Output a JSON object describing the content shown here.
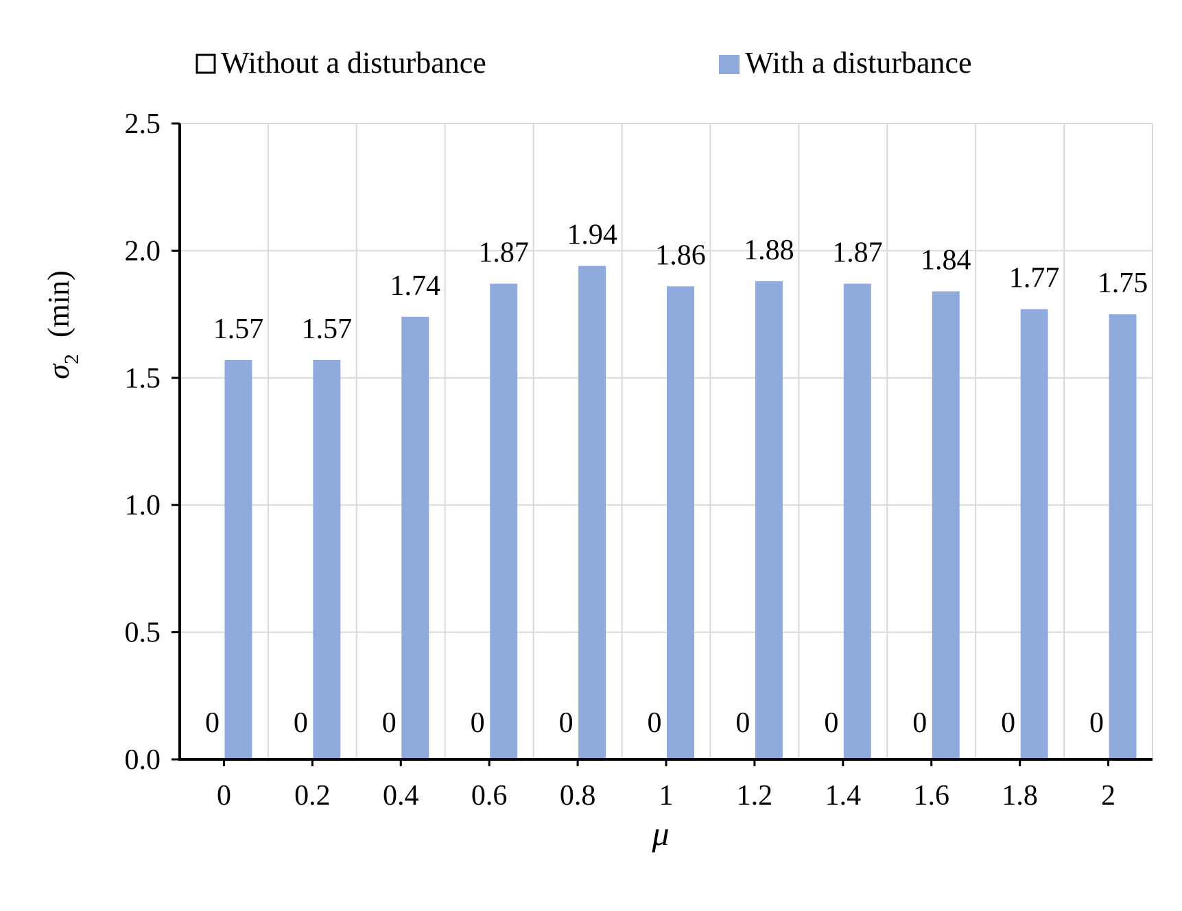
{
  "chart_data": {
    "type": "bar",
    "categories": [
      "0",
      "0.2",
      "0.4",
      "0.6",
      "0.8",
      "1",
      "1.2",
      "1.4",
      "1.6",
      "1.8",
      "2"
    ],
    "series": [
      {
        "name": "Without a disturbance",
        "values": [
          0,
          0,
          0,
          0,
          0,
          0,
          0,
          0,
          0,
          0,
          0
        ],
        "data_labels": [
          "0",
          "0",
          "0",
          "0",
          "0",
          "0",
          "0",
          "0",
          "0",
          "0",
          "0"
        ],
        "color": "#ffffff",
        "stroke": "#000000"
      },
      {
        "name": "With a disturbance",
        "values": [
          1.57,
          1.57,
          1.74,
          1.87,
          1.94,
          1.86,
          1.88,
          1.87,
          1.84,
          1.77,
          1.75
        ],
        "data_labels": [
          "1.57",
          "1.57",
          "1.74",
          "1.87",
          "1.94",
          "1.86",
          "1.88",
          "1.87",
          "1.84",
          "1.77",
          "1.75"
        ],
        "color": "#8faadc"
      }
    ],
    "title": "",
    "xlabel": "μ",
    "ylabel_symbol": "σ",
    "ylabel_subscript": "2",
    "ylabel_unit": "(min)",
    "ylim": [
      0,
      2.5
    ],
    "yticks": [
      "0.0",
      "0.5",
      "1.0",
      "1.5",
      "2.0",
      "2.5"
    ],
    "grid": true,
    "grid_color": "#d9d9d9",
    "legend_position": "top"
  }
}
